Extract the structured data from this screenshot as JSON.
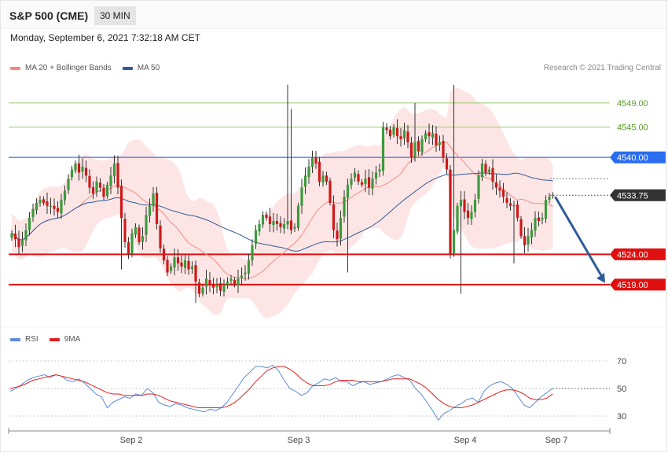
{
  "header": {
    "title": "S&P 500 (CME)",
    "timeframe": "30 MIN",
    "datetime": "Monday, September 6, 2021 7:32:18 AM CET",
    "credit": "Research © 2021 Trading Central"
  },
  "legend_main": [
    {
      "label": "MA 20 + Bollinger Bands",
      "color": "#f28b82"
    },
    {
      "label": "MA 50",
      "color": "#2e5c99"
    }
  ],
  "legend_rsi": [
    {
      "label": "RSI",
      "color": "#5b8bd9"
    },
    {
      "label": "9MA",
      "color": "#e02020"
    }
  ],
  "colors": {
    "up": "#3c9a3c",
    "down": "#d01818",
    "band": "#fde0e0",
    "ma20": "#f28b82",
    "ma50": "#2e5c99",
    "support": "#e01010",
    "resistance_green": "#9dcc6f",
    "resistance_blue": "#3a70e0",
    "arrow": "#2e5c99",
    "rsi": "#5b8bd9",
    "rsi_ma": "#e02020"
  },
  "chart_data": [
    {
      "type": "candlestick",
      "price_range": [
        4512.5,
        4553
      ],
      "x_ticks": [
        "Sep 2",
        "Sep 3",
        "Sep 4",
        "Sep 7"
      ],
      "current_price": 4533.75,
      "levels": [
        {
          "value": 4549.0,
          "label": "4549.00",
          "style": "resistance_green"
        },
        {
          "value": 4545.0,
          "label": "4545.00",
          "style": "resistance_green"
        },
        {
          "value": 4540.0,
          "label": "4540.00",
          "style": "resistance_blue"
        },
        {
          "value": 4533.75,
          "label": "4533.75",
          "style": "current"
        },
        {
          "value": 4524.0,
          "label": "4524.00",
          "style": "support"
        },
        {
          "value": 4519.0,
          "label": "4519.00",
          "style": "support"
        }
      ],
      "forecast": {
        "from": 4533.5,
        "to": 4519.0
      },
      "closes": [
        4527.5,
        4526.5,
        4525.2,
        4526.5,
        4528.0,
        4530.0,
        4531.5,
        4532.5,
        4533.0,
        4532.5,
        4532.0,
        4532.0,
        4531.5,
        4531.0,
        4533.0,
        4534.5,
        4536.5,
        4538.0,
        4539.0,
        4537.5,
        4538.5,
        4537.0,
        4535.0,
        4534.0,
        4536.0,
        4535.0,
        4533.5,
        4535.5,
        4537.0,
        4539.0,
        4535.0,
        4530.0,
        4526.0,
        4524.0,
        4527.5,
        4528.5,
        4526.0,
        4527.0,
        4530.5,
        4532.0,
        4534.0,
        4529.0,
        4525.0,
        4523.0,
        4521.0,
        4522.0,
        4523.5,
        4522.5,
        4522.0,
        4523.0,
        4521.5,
        4522.0,
        4519.5,
        4517.5,
        4518.5,
        4520.0,
        4519.0,
        4518.5,
        4519.0,
        4518.0,
        4519.0,
        4519.5,
        4520.0,
        4519.0,
        4520.0,
        4520.5,
        4521.0,
        4523.0,
        4525.5,
        4528.0,
        4529.0,
        4530.5,
        4530.0,
        4529.0,
        4529.5,
        4529.0,
        4528.5,
        4529.0,
        4529.5,
        4528.0,
        4528.5,
        4532.0,
        4535.0,
        4537.0,
        4538.5,
        4540.0,
        4539.0,
        4536.0,
        4537.0,
        4536.0,
        4532.5,
        4528.0,
        4526.5,
        4530.0,
        4533.5,
        4535.5,
        4536.5,
        4537.5,
        4536.0,
        4535.5,
        4536.5,
        4535.0,
        4536.5,
        4537.5,
        4538.0,
        4545.0,
        4544.5,
        4543.5,
        4545.0,
        4543.5,
        4543.0,
        4544.5,
        4542.5,
        4540.0,
        4542.5,
        4541.0,
        4543.0,
        4544.0,
        4543.5,
        4544.0,
        4542.0,
        4542.5,
        4540.0,
        4538.0,
        4524.0,
        4528.0,
        4532.0,
        4533.0,
        4531.0,
        4530.0,
        4531.0,
        4533.0,
        4537.0,
        4539.0,
        4537.5,
        4538.0,
        4536.0,
        4535.0,
        4534.5,
        4533.5,
        4532.5,
        4532.0,
        4532.0,
        4530.0,
        4527.0,
        4525.5,
        4527.0,
        4528.0,
        4530.0,
        4529.5,
        4530.0,
        4533.0,
        4533.5,
        4533.75
      ],
      "rsi": {
        "y_ticks": [
          70,
          50,
          30
        ],
        "range": [
          22,
          78
        ],
        "rsi_values": [
          48,
          50,
          53,
          56,
          58,
          59,
          60,
          58,
          60,
          59,
          56,
          55,
          57,
          54,
          50,
          46,
          44,
          36,
          40,
          42,
          44,
          43,
          46,
          45,
          50,
          47,
          40,
          38,
          37,
          39,
          38,
          36,
          35,
          34,
          33,
          35,
          34,
          36,
          40,
          46,
          52,
          58,
          62,
          66,
          66,
          65,
          67,
          63,
          56,
          50,
          48,
          45,
          47,
          52,
          54,
          57,
          56,
          58,
          55,
          55,
          52,
          54,
          55,
          53,
          54,
          55,
          57,
          59,
          60,
          58,
          56,
          50,
          46,
          40,
          34,
          27,
          32,
          34,
          37,
          39,
          42,
          43,
          40,
          48,
          52,
          54,
          55,
          53,
          50,
          44,
          38,
          36,
          40,
          44,
          47,
          50
        ],
        "rsi_ma_values": [
          50,
          51,
          52,
          54,
          56,
          57,
          58,
          59,
          60,
          59,
          58,
          57,
          56,
          55,
          53,
          51,
          49,
          47,
          46,
          46,
          45,
          45,
          45,
          45,
          46,
          46,
          45,
          43,
          41,
          40,
          39,
          38,
          37,
          36,
          36,
          36,
          36,
          36,
          37,
          39,
          42,
          46,
          50,
          55,
          59,
          63,
          65,
          66,
          66,
          64,
          61,
          57,
          54,
          52,
          52,
          52,
          53,
          55,
          56,
          56,
          56,
          55,
          55,
          55,
          55,
          55,
          56,
          57,
          57,
          57,
          57,
          55,
          53,
          50,
          46,
          42,
          39,
          37,
          36,
          36,
          37,
          38,
          40,
          42,
          44,
          46,
          48,
          49,
          49,
          48,
          46,
          43,
          42,
          42,
          43,
          46
        ]
      }
    }
  ]
}
